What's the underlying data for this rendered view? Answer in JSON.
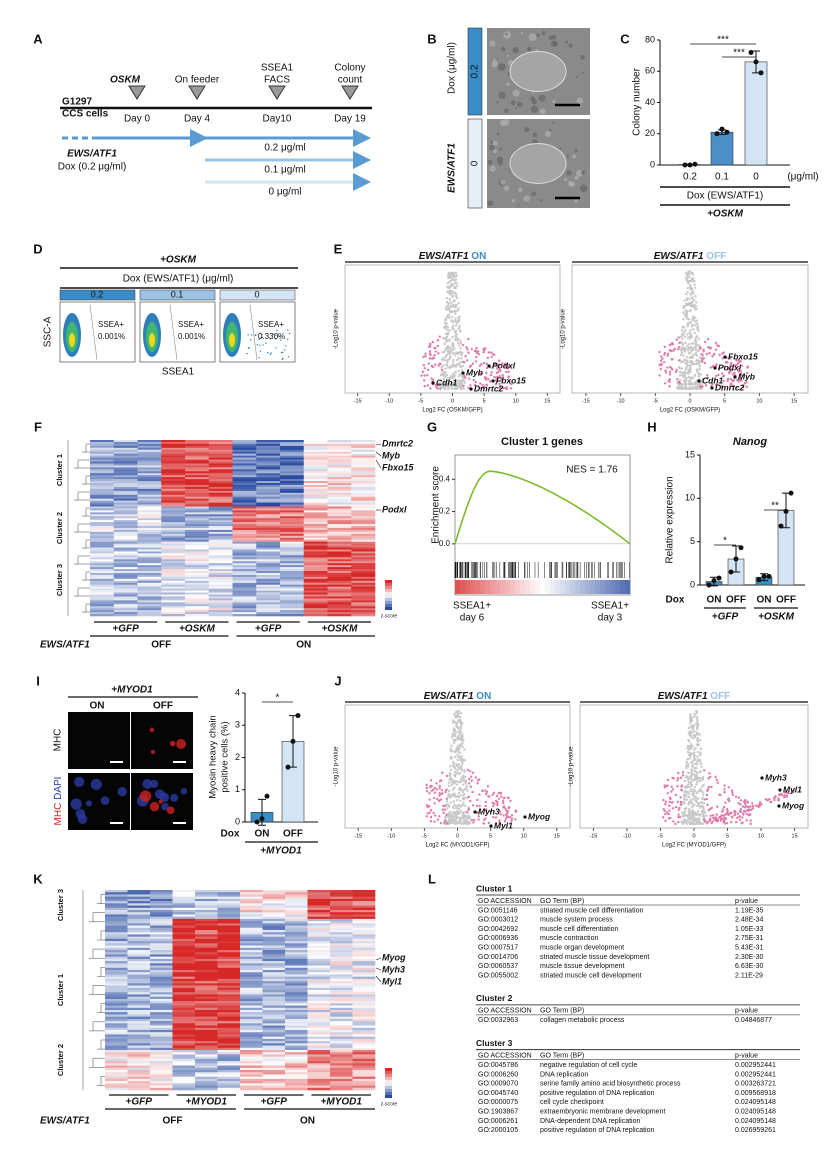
{
  "panel_letters": [
    "A",
    "B",
    "C",
    "D",
    "E",
    "F",
    "G",
    "H",
    "I",
    "J",
    "K",
    "L"
  ],
  "panel_a": {
    "cell_line": "G1297",
    "cell_type": "CCS cells",
    "events": [
      [
        "OSKM"
      ],
      [
        "On feeder"
      ],
      [
        "SSEA1",
        "FACS"
      ],
      [
        "Colony",
        "count"
      ]
    ],
    "days": [
      "Day 0",
      "Day 4",
      "Day10",
      "Day 19"
    ],
    "transgene": "EWS/ATF1",
    "dox": "Dox (0.2 μg/ml)",
    "doses": [
      "0.2 μg/ml",
      "0.1 μg/ml",
      "0 μg/ml"
    ]
  },
  "panel_b": {
    "transgene": "EWS/ATF1",
    "dox": "Dox (μg/ml)",
    "doses": [
      "0.2",
      "0"
    ]
  },
  "panel_c": {
    "chart": {
      "type": "bar",
      "ylabel": "Colony number",
      "categories": [
        "0.2",
        "0.1",
        "0"
      ],
      "values": [
        0.3,
        21,
        66
      ],
      "errors": [
        0.3,
        1.5,
        7
      ],
      "points": [
        [
          0,
          0,
          0.5
        ],
        [
          20,
          23,
          21
        ],
        [
          72,
          66,
          59
        ]
      ],
      "colors": [
        "#1f4e8c",
        "#4a8fc7",
        "#d3e4f4"
      ],
      "ylim": [
        0,
        80
      ],
      "yticks": [
        0,
        20,
        40,
        60,
        80
      ],
      "significance": [
        "***",
        "***"
      ]
    },
    "unit": "(μg/ml)",
    "xlabel": "Dox (EWS/ATF1)",
    "treatment": "+OSKM"
  },
  "panel_d": {
    "treatment": "+OSKM",
    "dox": "Dox (EWS/ATF1) (μg/ml)",
    "doses": [
      "0.2",
      "0.1",
      "0"
    ],
    "gate": "SSEA+",
    "percentages": [
      "0.001%",
      "0.001%",
      "0.330%"
    ],
    "ylabel": "SSC-A",
    "xlabel": "SSEA1"
  },
  "panel_e": {
    "plots": [
      {
        "gene": "EWS/ATF1",
        "state": "ON",
        "labels": [
          "Cdh1",
          "Myb",
          "Podxl",
          "Fbxo15",
          "Dmrtc2"
        ]
      },
      {
        "gene": "EWS/ATF1",
        "state": "OFF",
        "labels": [
          "Fbxo15",
          "Podxl",
          "Myb",
          "Cdh1",
          "Dmrtc2"
        ]
      }
    ],
    "xlabel": "Log2 FC (OSKM/GFP)",
    "ylabel": "-Log10 p-value",
    "xticks": [
      -15,
      -10,
      -5,
      0,
      5,
      10,
      15
    ],
    "xlim": [
      -17,
      17
    ]
  },
  "panel_f": {
    "clusters": [
      "Cluster 1",
      "Cluster 2",
      "Cluster 3"
    ],
    "genes": [
      "Dmrtc2",
      "Myb",
      "Fbxo15",
      "Podxl"
    ],
    "columns": [
      "+GFP",
      "+OSKM",
      "+GFP",
      "+OSKM"
    ],
    "row_label": "EWS/ATF1",
    "states": [
      "OFF",
      "ON"
    ],
    "legend": "z-score"
  },
  "panel_g": {
    "title": "Cluster 1 genes",
    "ylabel": "Enrichment score",
    "nes": "NES = 1.76",
    "yticks": [
      {
        "value": 0,
        "label": "0.0"
      },
      0.2,
      0.4
    ],
    "ylim": [
      -0.1,
      0.55
    ],
    "left": [
      "SSEA1+",
      "day 6"
    ],
    "right": [
      "SSEA1+",
      "day 3"
    ]
  },
  "panel_h": {
    "title": "Nanog",
    "chart": {
      "type": "bar",
      "ylabel": "Relative expression",
      "categories": [
        "ON",
        "OFF",
        "ON",
        "OFF"
      ],
      "values": [
        0.4,
        3.0,
        0.9,
        8.6
      ],
      "errors": [
        0.5,
        1.5,
        0.4,
        2.0
      ],
      "points": [
        [
          0,
          0.5,
          0.8
        ],
        [
          1.5,
          3,
          4.3
        ],
        [
          0.6,
          1,
          1
        ],
        [
          6.8,
          8.5,
          10.6
        ]
      ],
      "colors": [
        "#3c8dc6",
        "#d3e4f4",
        "#3c8dc6",
        "#d3e4f4"
      ],
      "ylim": [
        0,
        15
      ],
      "yticks": [
        0,
        5,
        10,
        15
      ],
      "significance": [
        "*",
        "**"
      ]
    },
    "dox": "Dox",
    "groups": [
      "+GFP",
      "+OSKM"
    ]
  },
  "panel_i": {
    "treatment": "+MYOD1",
    "states": [
      "ON",
      "OFF"
    ],
    "stain_top": "MHC",
    "stain_bottom": [
      "MHC",
      "DAPI"
    ],
    "chart": {
      "type": "bar",
      "ylabel": [
        "Myosin heavy chain",
        "positive cells (%)"
      ],
      "categories": [
        "ON",
        "OFF"
      ],
      "values": [
        0.3,
        2.5
      ],
      "errors": [
        0.4,
        0.8
      ],
      "points": [
        [
          0,
          0.1,
          0.8
        ],
        [
          1.7,
          2.5,
          3.3
        ]
      ],
      "colors": [
        "#3c8dc6",
        "#d3e4f4"
      ],
      "ylim": [
        0,
        4
      ],
      "yticks": [
        0,
        1,
        2,
        3,
        4
      ],
      "significance": [
        "*"
      ]
    },
    "dox": "Dox"
  },
  "panel_j": {
    "plots": [
      {
        "gene": "EWS/ATF1",
        "state": "ON",
        "labels": [
          "Myh3",
          "Myog",
          "Myl1"
        ]
      },
      {
        "gene": "EWS/ATF1",
        "state": "OFF",
        "labels": [
          "Myh3",
          "Myl1",
          "Myog"
        ]
      }
    ],
    "xlabel": "Log2 FC (MYOD1/GFP)",
    "ylabel": "-Log10 p-value",
    "xticks": [
      -15,
      -10,
      -5,
      0,
      5,
      10,
      15
    ],
    "xlim": [
      -17,
      17
    ]
  },
  "panel_k": {
    "clusters": [
      "Cluster 3",
      "Cluster 1",
      "Cluster 2"
    ],
    "genes": [
      "Myog",
      "Myh3",
      "Myl1"
    ],
    "columns": [
      "+GFP",
      "+MYOD1",
      "+GFP",
      "+MYOD1"
    ],
    "row_label": "EWS/ATF1",
    "states": [
      "OFF",
      "ON"
    ],
    "legend": "z-score"
  },
  "panel_l": {
    "clusters": [
      {
        "name": "Cluster 1",
        "header": [
          "GO ACCESSION",
          "GO Term (BP)",
          "p-value"
        ],
        "rows": [
          [
            "GO:0051146",
            "striated muscle cell differentiation",
            "1.19E-35"
          ],
          [
            "GO:0003012",
            "muscle system process",
            "2.48E-34"
          ],
          [
            "GO:0042692",
            "muscle cell differentiation",
            "1.05E-33"
          ],
          [
            "GO:0006936",
            "muscle contraction",
            "2.75E-31"
          ],
          [
            "GO:0007517",
            "muscle organ development",
            "5.43E-31"
          ],
          [
            "GO:0014706",
            "striated muscle tissue development",
            "2.30E-30"
          ],
          [
            "GO:0060537",
            "muscle tissue development",
            "6.63E-30"
          ],
          [
            "GO:0055002",
            "striated muscle cell development",
            "2.11E-29"
          ]
        ]
      },
      {
        "name": "Cluster 2",
        "header": [
          "GO ACCESSION",
          "GO Term (BP)",
          "p-value"
        ],
        "rows": [
          [
            "GO:0032963",
            "collagen metabolic process",
            "0.04846877"
          ]
        ]
      },
      {
        "name": "Cluster 3",
        "header": [
          "GO ACCESSION",
          "GO Term (BP)",
          "p-value"
        ],
        "rows": [
          [
            "GO:0045786",
            "negative regulation of cell cycle",
            "0.002952441"
          ],
          [
            "GO:0006260",
            "DNA replication",
            "0.002952441"
          ],
          [
            "GO:0009070",
            "serine family amino acid biosynthetic process",
            "0.003263721"
          ],
          [
            "GO:0045740",
            "positive regulation of DNA replication",
            "0.009568918"
          ],
          [
            "GO:0000075",
            "cell cycle checkpoint",
            "0.024095148"
          ],
          [
            "GO:1903867",
            "extraembryonic membrane development",
            "0.024095148"
          ],
          [
            "GO:0006261",
            "DNA-dependent DNA replication",
            "0.024095148"
          ],
          [
            "GO:2000105",
            "positive regulation of DNA replication",
            "0.026959261"
          ]
        ]
      }
    ]
  }
}
